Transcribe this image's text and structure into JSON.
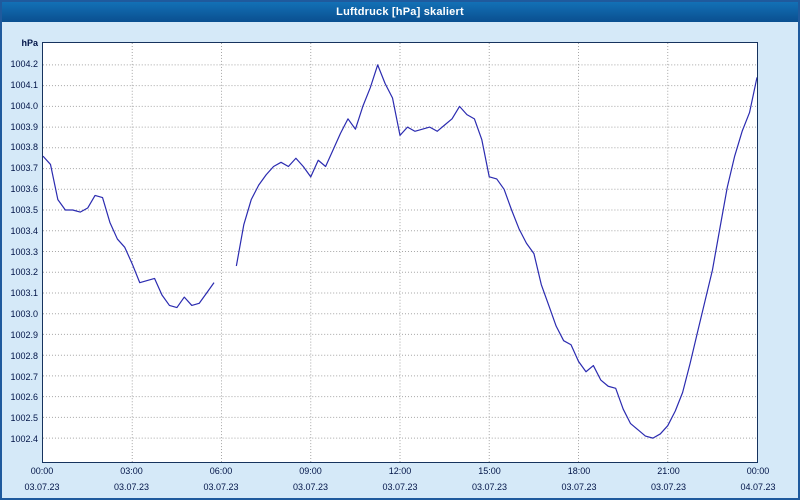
{
  "window": {
    "title": "Luftdruck [hPa] skaliert"
  },
  "chart_data": {
    "type": "line",
    "title": "Luftdruck [hPa] skaliert",
    "xlabel": "",
    "ylabel": "hPa",
    "line_color": "#2b2bb0",
    "grid_color": "#a6a6a6",
    "titlebar_color": "#0d5aa0",
    "background_color": "#d5e9f8",
    "grid": true,
    "legend": "none",
    "ylim": [
      1002.4,
      1004.2
    ],
    "y_ticks": [
      1004.2,
      1004.1,
      1004.0,
      1003.9,
      1003.8,
      1003.7,
      1003.6,
      1003.5,
      1003.4,
      1003.3,
      1003.2,
      1003.1,
      1003.0,
      1002.9,
      1002.8,
      1002.7,
      1002.6,
      1002.5,
      1002.4
    ],
    "x_range": [
      0,
      24
    ],
    "x_ticks": [
      {
        "hour": 0,
        "time": "00:00",
        "date": "03.07.23"
      },
      {
        "hour": 3,
        "time": "03:00",
        "date": "03.07.23"
      },
      {
        "hour": 6,
        "time": "06:00",
        "date": "03.07.23"
      },
      {
        "hour": 9,
        "time": "09:00",
        "date": "03.07.23"
      },
      {
        "hour": 12,
        "time": "12:00",
        "date": "03.07.23"
      },
      {
        "hour": 15,
        "time": "15:00",
        "date": "03.07.23"
      },
      {
        "hour": 18,
        "time": "18:00",
        "date": "03.07.23"
      },
      {
        "hour": 21,
        "time": "21:00",
        "date": "03.07.23"
      },
      {
        "hour": 24,
        "time": "00:00",
        "date": "04.07.23"
      }
    ],
    "series_name": "Luftdruck",
    "x_hours": [
      0,
      0.25,
      0.5,
      0.75,
      1,
      1.25,
      1.5,
      1.75,
      2,
      2.25,
      2.5,
      2.75,
      3,
      3.25,
      3.5,
      3.75,
      4,
      4.25,
      4.5,
      4.75,
      5,
      5.25,
      5.5,
      5.75,
      6,
      6.25,
      6.5,
      6.75,
      7,
      7.25,
      7.5,
      7.75,
      8,
      8.25,
      8.5,
      8.75,
      9,
      9.25,
      9.5,
      9.75,
      10,
      10.25,
      10.5,
      10.75,
      11,
      11.25,
      11.5,
      11.75,
      12,
      12.25,
      12.5,
      12.75,
      13,
      13.25,
      13.5,
      13.75,
      14,
      14.25,
      14.5,
      14.75,
      15,
      15.25,
      15.5,
      15.75,
      16,
      16.25,
      16.5,
      16.75,
      17,
      17.25,
      17.5,
      17.75,
      18,
      18.25,
      18.5,
      18.75,
      19,
      19.25,
      19.5,
      19.75,
      20,
      20.25,
      20.5,
      20.75,
      21,
      21.25,
      21.5,
      21.75,
      22,
      22.25,
      22.5,
      22.75,
      23,
      23.25,
      23.5,
      23.75,
      24
    ],
    "values": [
      1003.76,
      1003.72,
      1003.55,
      1003.5,
      1003.5,
      1003.49,
      1003.51,
      1003.57,
      1003.56,
      1003.44,
      1003.36,
      1003.32,
      1003.24,
      1003.15,
      1003.16,
      1003.17,
      1003.09,
      1003.04,
      1003.03,
      1003.08,
      1003.04,
      1003.05,
      1003.1,
      1003.15,
      null,
      null,
      1003.23,
      1003.43,
      1003.55,
      1003.62,
      1003.67,
      1003.71,
      1003.73,
      1003.71,
      1003.75,
      1003.71,
      1003.66,
      1003.74,
      1003.71,
      1003.79,
      1003.87,
      1003.94,
      1003.89,
      1004.0,
      1004.09,
      1004.2,
      1004.11,
      1004.04,
      1003.86,
      1003.9,
      1003.88,
      1003.89,
      1003.9,
      1003.88,
      1003.91,
      1003.94,
      1004.0,
      1003.96,
      1003.94,
      1003.84,
      1003.66,
      1003.65,
      1003.6,
      1003.5,
      1003.41,
      1003.34,
      1003.29,
      1003.14,
      1003.04,
      1002.94,
      1002.87,
      1002.85,
      1002.77,
      1002.72,
      1002.75,
      1002.68,
      1002.65,
      1002.64,
      1002.54,
      1002.47,
      1002.44,
      1002.41,
      1002.4,
      1002.42,
      1002.46,
      1002.53,
      1002.62,
      1002.76,
      1002.91,
      1003.06,
      1003.21,
      1003.41,
      1003.61,
      1003.76,
      1003.88,
      1003.97,
      1004.14
    ]
  }
}
